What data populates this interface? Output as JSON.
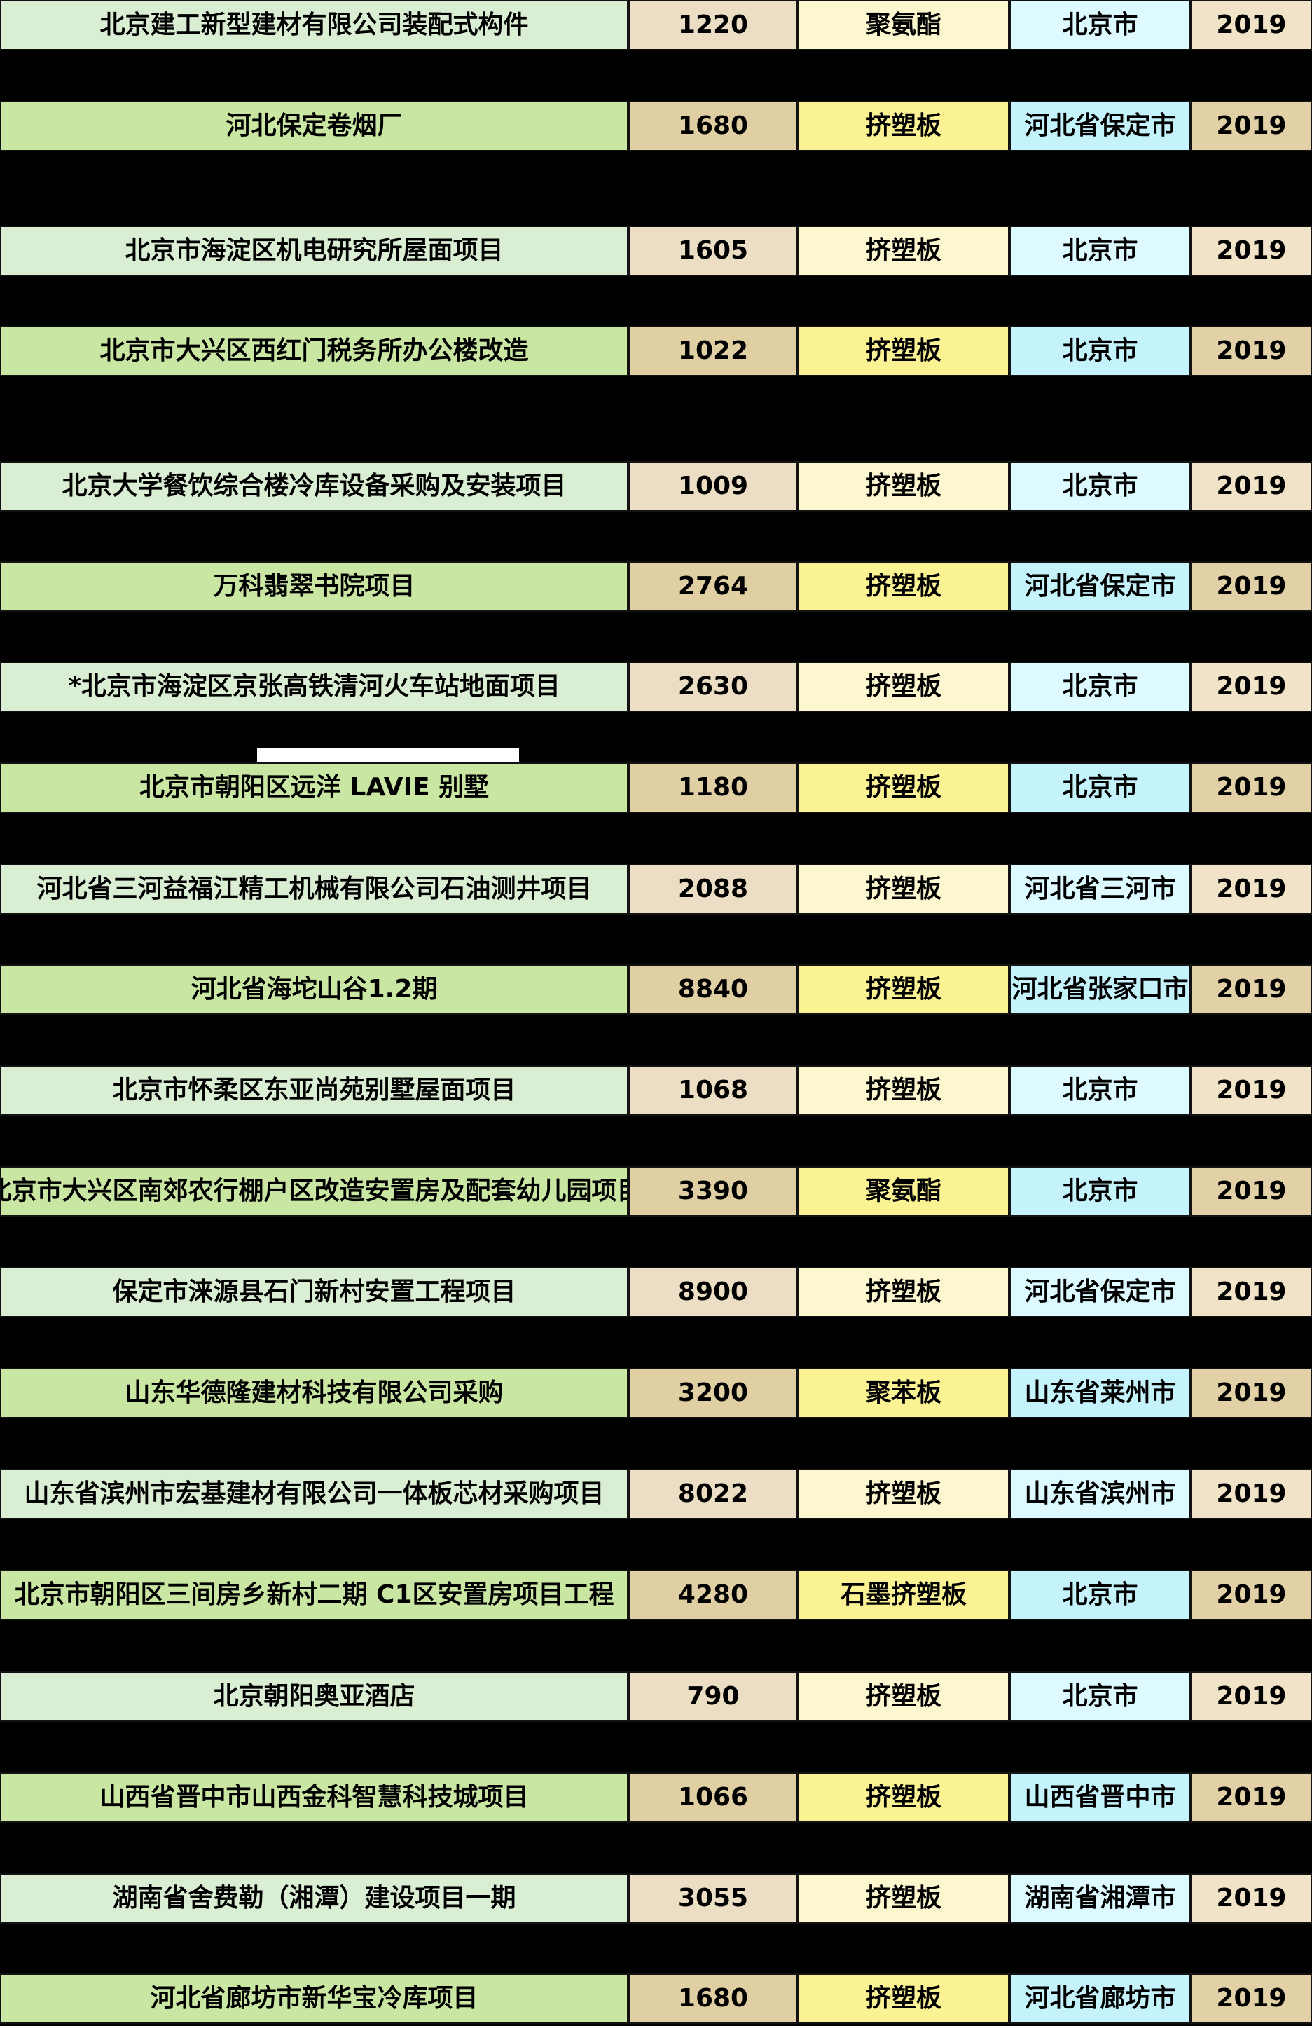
{
  "page": {
    "background": "#000000"
  },
  "colors": {
    "border": "#121212",
    "text": "#000000",
    "white_bar": "#ffffff",
    "row_light": {
      "project": "#daeed4",
      "value": "#ebdec4",
      "material": "#fdf7d0",
      "location": "#dcfaff",
      "year": "#f0e3c7"
    },
    "row_dark": {
      "project": "#c9e6a2",
      "value": "#e0cfa2",
      "material": "#fbf293",
      "location": "#c5f3fb",
      "year": "#e2d1a6"
    }
  },
  "table": {
    "columns": [
      "project",
      "value",
      "material",
      "location",
      "year"
    ],
    "rows": [
      {
        "variant": "light",
        "project": "北京建工新型建材有限公司装配式构件",
        "value": "1220",
        "material": "聚氨酯",
        "location": "北京市",
        "year": "2019"
      },
      {
        "variant": "dark",
        "project": "河北保定卷烟厂",
        "value": "1680",
        "material": "挤塑板",
        "location": "河北省保定市",
        "year": "2019"
      },
      {
        "variant": "light",
        "project": "北京市海淀区机电研究所屋面项目",
        "value": "1605",
        "material": "挤塑板",
        "location": "北京市",
        "year": "2019"
      },
      {
        "variant": "dark",
        "project": "北京市大兴区西红门税务所办公楼改造",
        "value": "1022",
        "material": "挤塑板",
        "location": "北京市",
        "year": "2019"
      },
      {
        "variant": "light",
        "project": "北京大学餐饮综合楼冷库设备采购及安装项目",
        "value": "1009",
        "material": "挤塑板",
        "location": "北京市",
        "year": "2019"
      },
      {
        "variant": "dark",
        "project": "万科翡翠书院项目",
        "value": "2764",
        "material": "挤塑板",
        "location": "河北省保定市",
        "year": "2019"
      },
      {
        "variant": "light",
        "project": "*北京市海淀区京张高铁清河火车站地面项目",
        "value": "2630",
        "material": "挤塑板",
        "location": "北京市",
        "year": "2019"
      },
      {
        "variant": "dark",
        "project": "北京市朝阳区远洋 LAVIE 别墅",
        "value": "1180",
        "material": "挤塑板",
        "location": "北京市",
        "year": "2019"
      },
      {
        "variant": "light",
        "project": "河北省三河益福江精工机械有限公司石油测井项目",
        "value": "2088",
        "material": "挤塑板",
        "location": "河北省三河市",
        "year": "2019"
      },
      {
        "variant": "dark",
        "project": "河北省海坨山谷1.2期",
        "value": "8840",
        "material": "挤塑板",
        "location": "河北省张家口市",
        "year": "2019"
      },
      {
        "variant": "light",
        "project": "北京市怀柔区东亚尚苑别墅屋面项目",
        "value": "1068",
        "material": "挤塑板",
        "location": "北京市",
        "year": "2019"
      },
      {
        "variant": "dark",
        "project": "北京市大兴区南郊农行棚户区改造安置房及配套幼儿园项目",
        "value": "3390",
        "material": "聚氨酯",
        "location": "北京市",
        "year": "2019"
      },
      {
        "variant": "light",
        "project": "保定市涞源县石门新村安置工程项目",
        "value": "8900",
        "material": "挤塑板",
        "location": "河北省保定市",
        "year": "2019"
      },
      {
        "variant": "dark",
        "project": "山东华德隆建材科技有限公司采购",
        "value": "3200",
        "material": "聚苯板",
        "location": "山东省莱州市",
        "year": "2019"
      },
      {
        "variant": "light",
        "project": "山东省滨州市宏基建材有限公司一体板芯材采购项目",
        "value": "8022",
        "material": "挤塑板",
        "location": "山东省滨州市",
        "year": "2019"
      },
      {
        "variant": "dark",
        "project": "北京市朝阳区三间房乡新村二期 C1区安置房项目工程",
        "value": "4280",
        "material": "石墨挤塑板",
        "location": "北京市",
        "year": "2019"
      },
      {
        "variant": "light",
        "project": "北京朝阳奥亚酒店",
        "value": "790",
        "material": "挤塑板",
        "location": "北京市",
        "year": "2019"
      },
      {
        "variant": "dark",
        "project": "山西省晋中市山西金科智慧科技城项目",
        "value": "1066",
        "material": "挤塑板",
        "location": "山西省晋中市",
        "year": "2019"
      },
      {
        "variant": "light",
        "project": "湖南省舍费勒（湘潭）建设项目一期",
        "value": "3055",
        "material": "挤塑板",
        "location": "湖南省湘潭市",
        "year": "2019"
      },
      {
        "variant": "dark",
        "project": "河北省廊坊市新华宝冷库项目",
        "value": "1680",
        "material": "挤塑板",
        "location": "河北省廊坊市",
        "year": "2019"
      }
    ]
  }
}
